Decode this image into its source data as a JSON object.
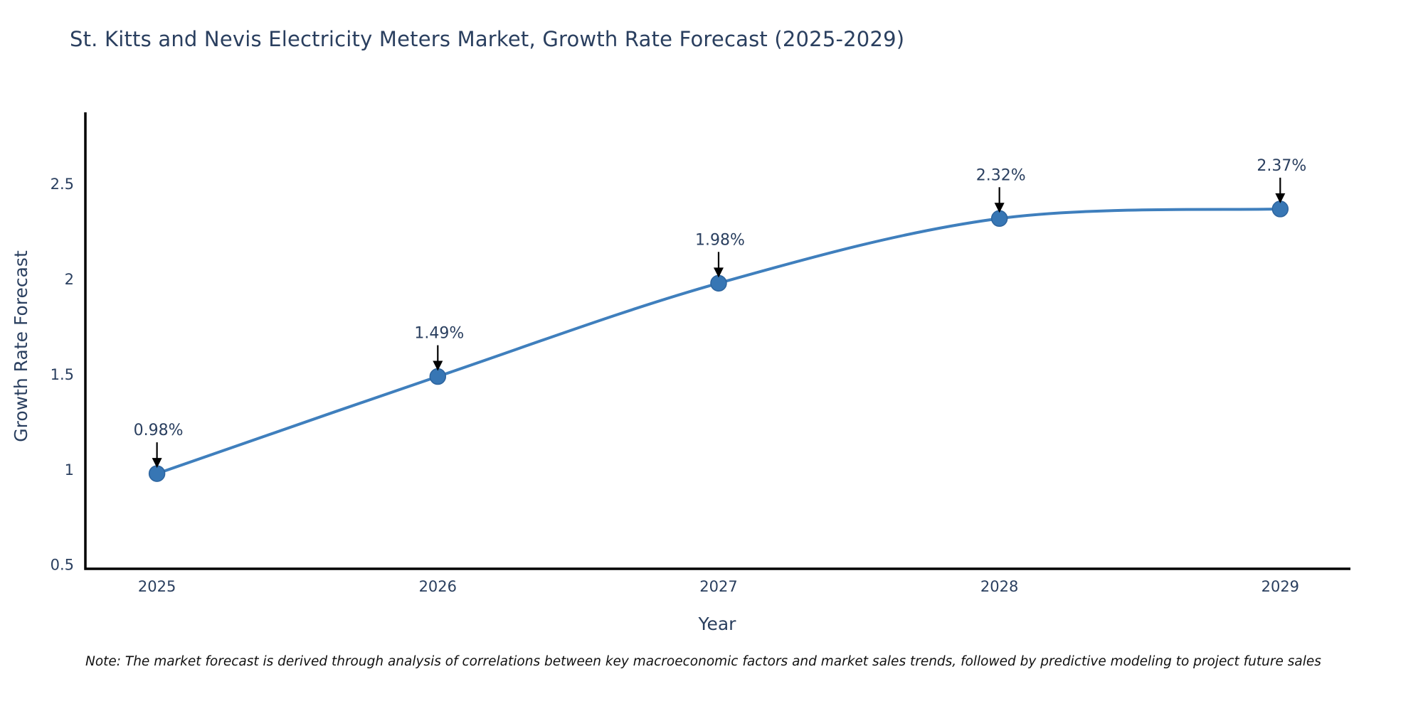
{
  "chart_data": {
    "type": "line",
    "title": "St. Kitts and Nevis Electricity Meters Market, Growth Rate Forecast (2025-2029)",
    "xlabel": "Year",
    "ylabel": "Growth Rate Forecast",
    "x": [
      2025,
      2026,
      2027,
      2028,
      2029
    ],
    "x_tick_labels": [
      "2025",
      "2026",
      "2027",
      "2028",
      "2029"
    ],
    "values": [
      0.98,
      1.49,
      1.98,
      2.32,
      2.37
    ],
    "point_labels": [
      "0.98%",
      "1.49%",
      "1.98%",
      "2.32%",
      "2.37%"
    ],
    "yticks": [
      0.5,
      1,
      1.5,
      2,
      2.5
    ],
    "ytick_labels": [
      "0.5",
      "1",
      "1.5",
      "2",
      "2.5"
    ],
    "ylim": [
      0.48,
      2.87
    ],
    "xlim": [
      2024.74,
      2029.25
    ],
    "grid": false,
    "legend_position": "none",
    "line_shape": "spline",
    "annotation_style": "label-with-down-arrow-to-point",
    "colors": {
      "line": "#3f7fbd",
      "marker_fill": "#3776b4",
      "marker_edge": "#2d649e",
      "axis_line": "#000000",
      "axis_text": "#2a3f5f",
      "annotation_text": "#2a3f5f",
      "annotation_arrow": "#000000",
      "background": "#ffffff"
    }
  },
  "note": {
    "text": "Note: The market forecast is derived through analysis of correlations between key macroeconomic factors and market sales trends, followed by predictive modeling to project future sales"
  }
}
